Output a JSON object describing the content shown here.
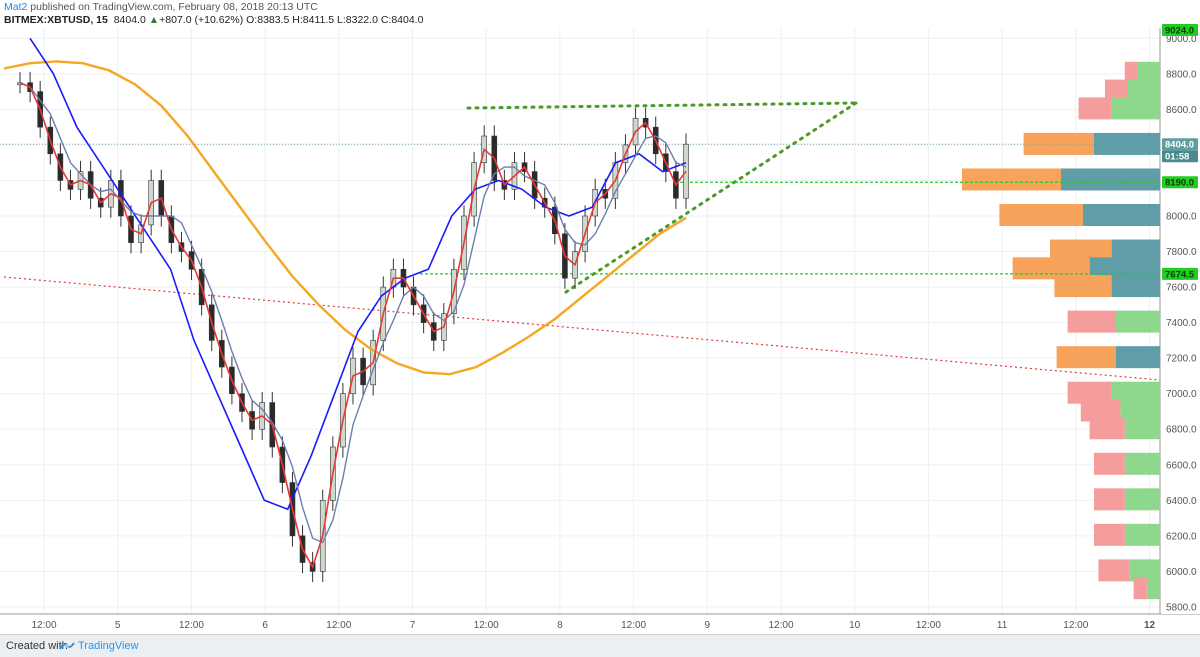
{
  "header": {
    "author": "Mat2",
    "published": " published on TradingView.com, February 08, 2018 20:13 UTC",
    "symbol": "BITMEX:XBTUSD, 15",
    "last": "8404.0",
    "change": "+807.0 (+10.62%)",
    "open": "O:8383.5",
    "high": "H:8411.5",
    "low": "L:8322.0",
    "close": "C:8404.0"
  },
  "footer": {
    "created_with": "Created with",
    "brand": "TradingView"
  },
  "colors": {
    "ema_slow": "#f5a623",
    "ema_mid": "#1a1aff",
    "ema_fast": "#e53935",
    "ema_faster": "#6b7fb0",
    "trend_dotted": "#4c9a2a",
    "red_trend": "#e53935",
    "level_line": "#22cc22",
    "vp_up": "#8ed88e",
    "vp_down": "#f59c9c",
    "vp_hi_up": "#5f9ea8",
    "vp_hi_down": "#f7a35c",
    "last_price_bg": "#5f9ea0"
  },
  "chart_data": {
    "type": "line",
    "title": "BITMEX:XBTUSD, 15",
    "ylim": [
      5800,
      9100
    ],
    "ytick_labels": [
      "9000.0",
      "8800.0",
      "8600.0",
      "8400.0",
      "8200.0",
      "8000.0",
      "7800.0",
      "7600.0",
      "7400.0",
      "7200.0",
      "7000.0",
      "6800.0",
      "6600.0",
      "6400.0",
      "6200.0",
      "6000.0",
      "5800.0"
    ],
    "xtick_labels": [
      "12:00",
      "5",
      "12:00",
      "6",
      "12:00",
      "7",
      "12:00",
      "8",
      "12:00",
      "9",
      "12:00",
      "10",
      "12:00",
      "11",
      "12:00",
      "12"
    ],
    "price_tags": {
      "last": "8404.0",
      "countdown": "01:58",
      "level_high": "8190.0",
      "level_low": "7674.5",
      "top_partial": "9024.0"
    },
    "series": [
      {
        "name": "",
        "kind": "price",
        "values": [
          8750,
          8700,
          8500,
          8350,
          8200,
          8150,
          8250,
          8100,
          8050,
          8200,
          8000,
          7850,
          7950,
          8200,
          8000,
          7850,
          7800,
          7700,
          7500,
          7300,
          7150,
          7000,
          6900,
          6800,
          6950,
          6700,
          6500,
          6200,
          6050,
          6000,
          6400,
          6700,
          7000,
          7200,
          7050,
          7300,
          7600,
          7700,
          7600,
          7500,
          7400,
          7300,
          7450,
          7700,
          8000,
          8300,
          8450,
          8200,
          8150,
          8300,
          8250,
          8100,
          8050,
          7900,
          7650,
          7800,
          8000,
          8150,
          8100,
          8300,
          8400,
          8550,
          8500,
          8350,
          8250,
          8100,
          8404
        ]
      },
      {
        "name": "",
        "kind": "ema_slow",
        "values": [
          8830,
          8860,
          8870,
          8860,
          8820,
          8740,
          8620,
          8450,
          8250,
          8050,
          7850,
          7660,
          7500,
          7360,
          7250,
          7170,
          7120,
          7110,
          7150,
          7230,
          7320,
          7420,
          7540,
          7660,
          7780,
          7900,
          7990
        ]
      },
      {
        "name": "",
        "kind": "ema_mid",
        "values": [
          9000,
          8800,
          8500,
          8300,
          8100,
          7900,
          7700,
          7300,
          7000,
          6700,
          6400,
          6350,
          6650,
          7000,
          7350,
          7550,
          7650,
          7700,
          8000,
          8150,
          8200,
          8150,
          8050,
          8000,
          8050,
          8300,
          8350,
          8250,
          8300
        ]
      }
    ],
    "volume_profile": {
      "price_bins": [
        8800,
        8700,
        8600,
        8400,
        8200,
        8000,
        7800,
        7700,
        7600,
        7400,
        7200,
        7000,
        6900,
        6800,
        6600,
        6400,
        6200,
        6000,
        5900
      ],
      "up_volume": [
        10,
        15,
        22,
        30,
        45,
        35,
        22,
        32,
        22,
        20,
        20,
        22,
        18,
        16,
        16,
        16,
        16,
        14,
        6
      ],
      "down_volume": [
        6,
        10,
        15,
        32,
        45,
        38,
        28,
        35,
        26,
        22,
        27,
        20,
        18,
        16,
        14,
        14,
        14,
        14,
        6
      ]
    }
  }
}
